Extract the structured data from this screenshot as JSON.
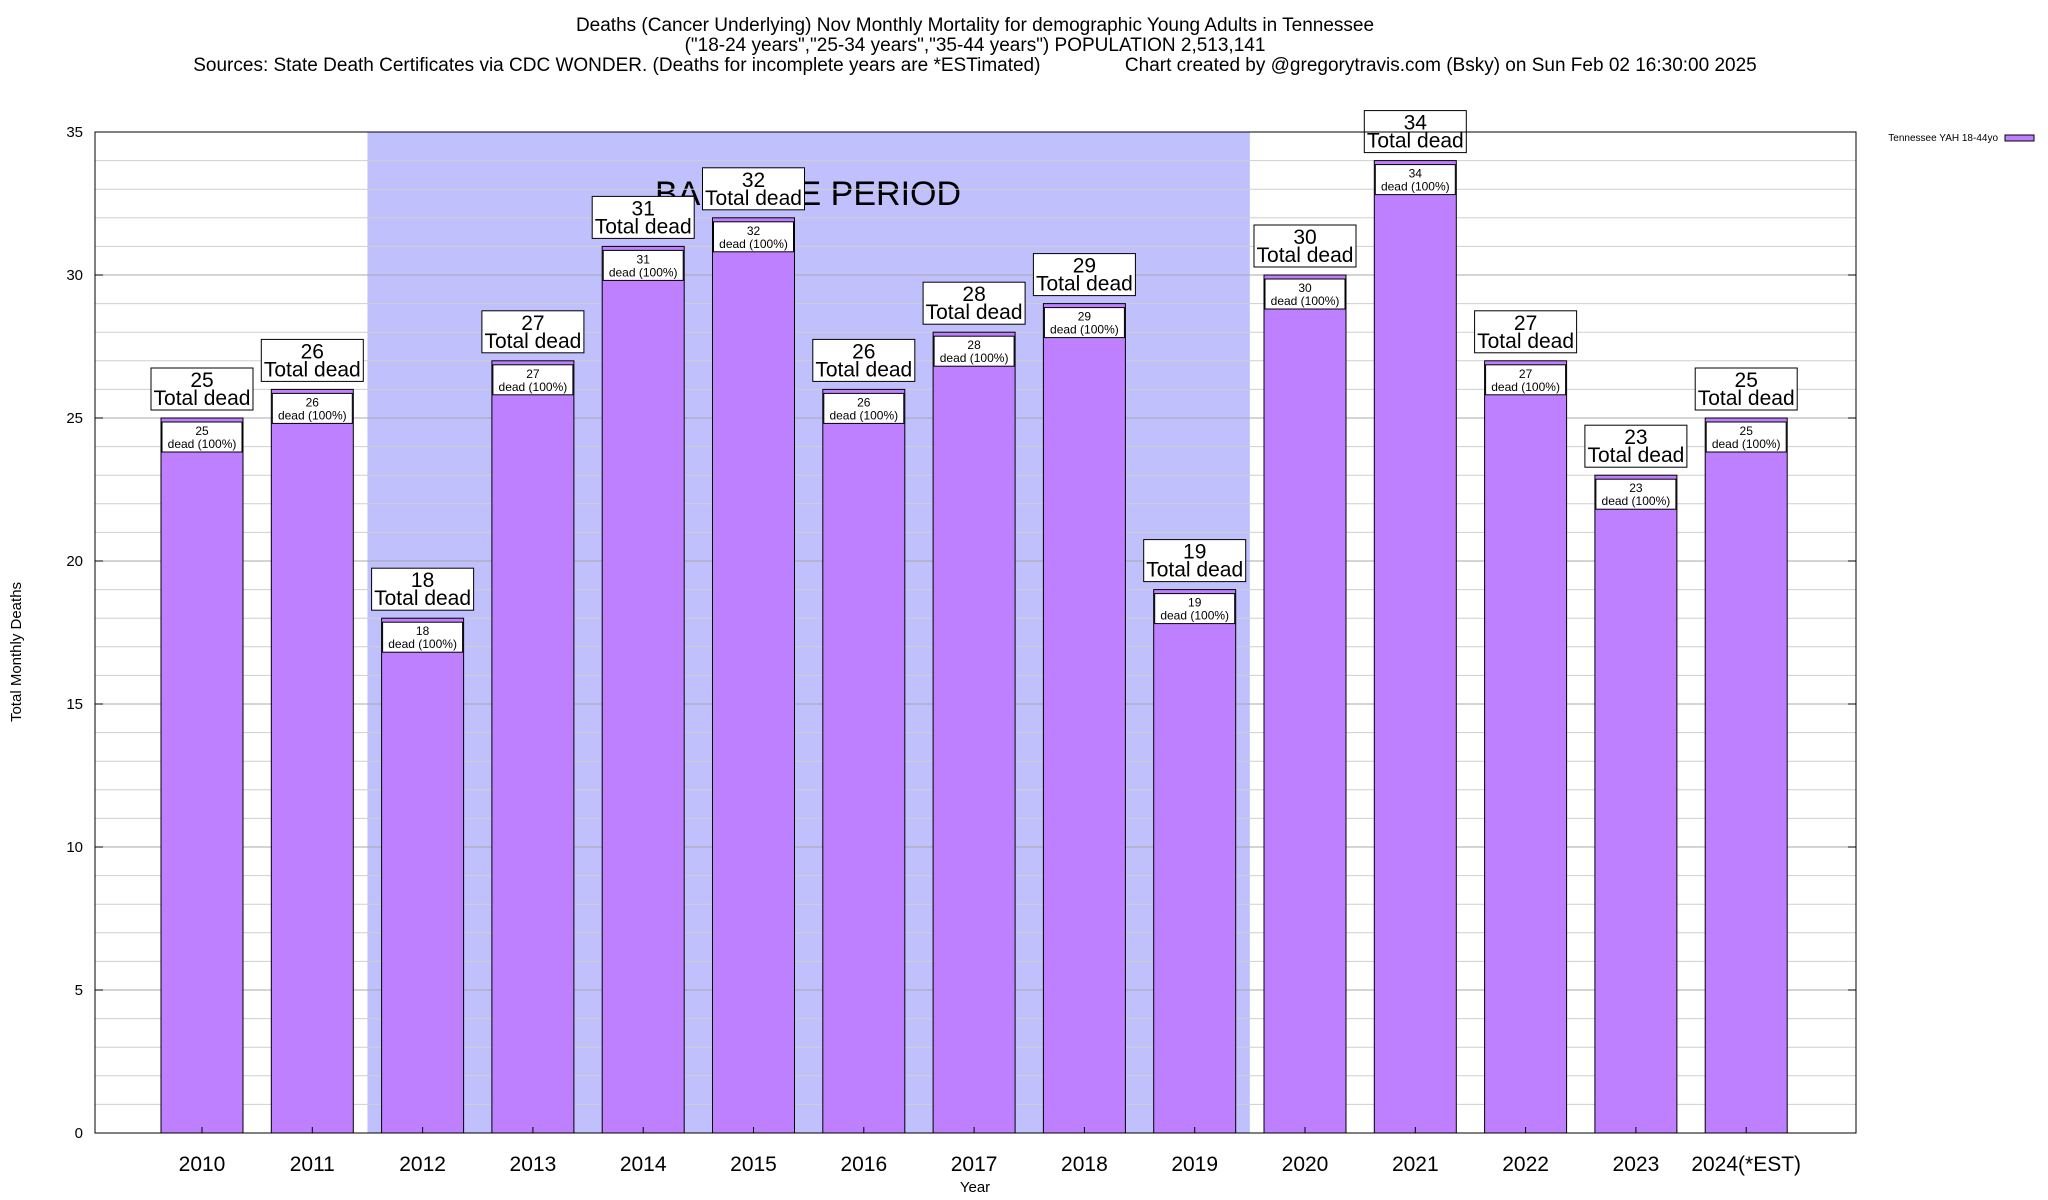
{
  "header": {
    "title_line1": "Deaths (Cancer Underlying) Nov Monthly Mortality for demographic Young Adults in Tennessee",
    "title_line2": "(\"18-24 years\",\"25-34 years\",\"35-44 years\") POPULATION 2,513,141",
    "title_line3": "Sources: State Death Certificates via CDC WONDER. (Deaths for incomplete years are *ESTimated)                Chart created by @gregorytravis.com (Bsky) on Sun Feb 02 16:30:00 2025"
  },
  "chart_data": {
    "type": "bar",
    "categories": [
      "2010",
      "2011",
      "2012",
      "2013",
      "2014",
      "2015",
      "2016",
      "2017",
      "2018",
      "2019",
      "2020",
      "2021",
      "2022",
      "2023",
      "2024(*EST)"
    ],
    "series": [
      {
        "name": "Tennessee YAH 18-44yo",
        "values": [
          25,
          26,
          18,
          27,
          31,
          32,
          26,
          28,
          29,
          19,
          30,
          34,
          27,
          23,
          25
        ],
        "color": "#bf80ff"
      }
    ],
    "xlabel": "Year",
    "ylabel": "Total Monthly Deaths",
    "ylim": [
      0,
      35
    ],
    "yticks": [
      0,
      5,
      10,
      15,
      20,
      25,
      30,
      35
    ],
    "grid": true,
    "legend_position": "top-right",
    "bar_label_text": "Total dead",
    "inner_label_text": "dead (100%)",
    "baseline_period": {
      "label": "BASELINE PERIOD",
      "start": "2012",
      "end": "2019",
      "color": "#c0c0fc"
    }
  }
}
